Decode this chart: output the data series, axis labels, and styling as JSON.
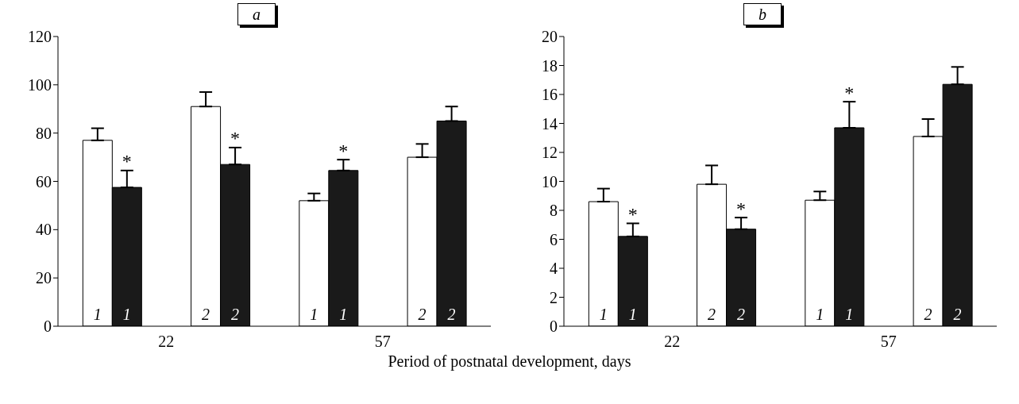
{
  "chart_data": [
    {
      "type": "bar",
      "title": "a",
      "xlabel": "Period of postnatal development, days",
      "categories": [
        "1",
        "2",
        "1",
        "2"
      ],
      "annotations": [
        "22",
        "57"
      ],
      "ylim": [
        0,
        120
      ],
      "yticks": [
        0,
        20,
        40,
        60,
        80,
        100,
        120
      ],
      "grid": false,
      "legend": false,
      "series": [
        {
          "color": "#ffffff",
          "values": [
            77,
            91,
            52,
            70
          ],
          "errors": [
            [
              77,
              82
            ],
            [
              91,
              97
            ],
            [
              52,
              55
            ],
            [
              70,
              75.5
            ]
          ]
        },
        {
          "color": "#1a1a1a",
          "values": [
            57.5,
            67,
            64.5,
            85
          ],
          "errors": [
            [
              57.5,
              64.5
            ],
            [
              67,
              74
            ],
            [
              64.5,
              69
            ],
            [
              85,
              91
            ]
          ],
          "value_labels": [
            "*",
            "*",
            "*",
            null
          ]
        }
      ]
    },
    {
      "type": "bar",
      "title": "b",
      "categories": [
        "1",
        "2",
        "1",
        "2"
      ],
      "annotations": [
        "22",
        "57"
      ],
      "ylim": [
        0,
        20
      ],
      "yticks": [
        0,
        2,
        4,
        6,
        8,
        10,
        12,
        14,
        16,
        18,
        20
      ],
      "grid": false,
      "legend": false,
      "series": [
        {
          "color": "#ffffff",
          "values": [
            8.6,
            9.8,
            8.7,
            13.1
          ],
          "errors": [
            [
              8.6,
              9.5
            ],
            [
              9.8,
              11.1
            ],
            [
              8.7,
              9.3
            ],
            [
              13.1,
              14.3
            ]
          ]
        },
        {
          "color": "#1a1a1a",
          "values": [
            6.2,
            6.7,
            13.7,
            16.7
          ],
          "errors": [
            [
              6.2,
              7.1
            ],
            [
              6.7,
              7.5
            ],
            [
              13.7,
              15.5
            ],
            [
              16.7,
              17.9
            ]
          ],
          "value_labels": [
            "*",
            "*",
            "*",
            null
          ]
        }
      ]
    }
  ]
}
